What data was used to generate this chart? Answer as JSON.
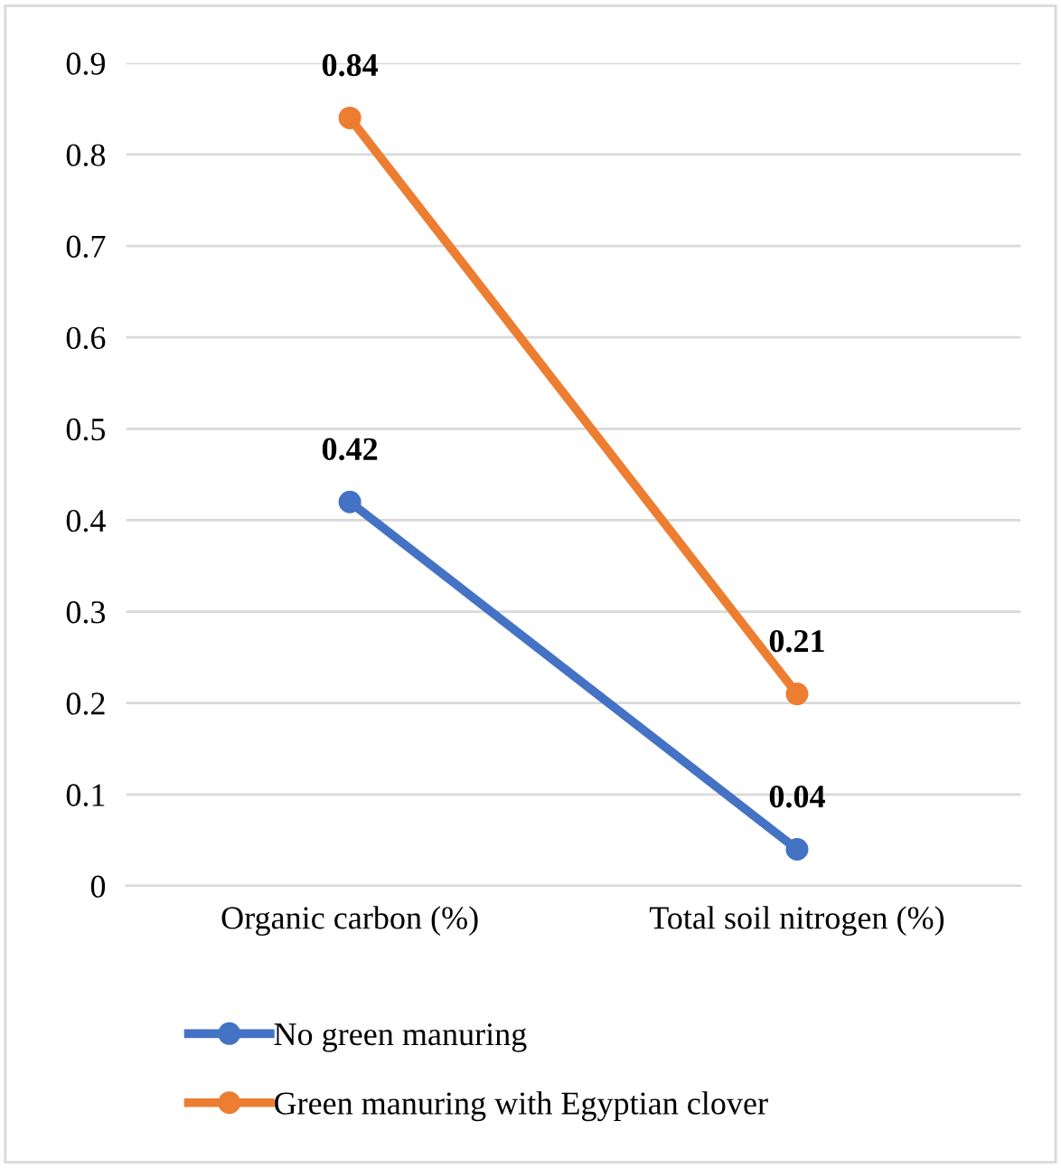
{
  "chart_data": {
    "type": "line",
    "categories": [
      "Organic carbon (%)",
      "Total soil nitrogen (%)"
    ],
    "series": [
      {
        "name": "No green manuring",
        "color": "#4472c4",
        "values": [
          0.42,
          0.04
        ]
      },
      {
        "name": "Green manuring with Egyptian clover",
        "color": "#ed7d31",
        "values": [
          0.84,
          0.21
        ]
      }
    ],
    "ylim": [
      0,
      0.9
    ],
    "yticks": [
      0,
      0.1,
      0.2,
      0.3,
      0.4,
      0.5,
      0.6,
      0.7,
      0.8,
      0.9
    ],
    "grid": "y",
    "legend": "bottom",
    "marker": "circle",
    "line_style": "solid",
    "data_labels": true
  }
}
